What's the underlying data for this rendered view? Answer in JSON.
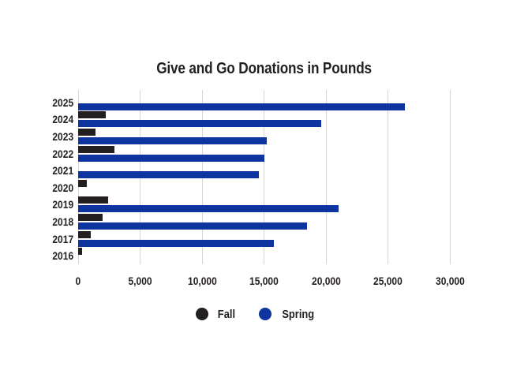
{
  "title": "Give and Go Donations in Pounds",
  "chart_data": {
    "type": "bar",
    "orientation": "horizontal",
    "title": "Give and Go Donations in Pounds",
    "categories": [
      "2025",
      "2024",
      "2023",
      "2022",
      "2021",
      "2020",
      "2019",
      "2018",
      "2017",
      "2016"
    ],
    "series": [
      {
        "name": "Fall",
        "color": "#231F20",
        "values": [
          0,
          2200,
          1400,
          2900,
          0,
          700,
          2400,
          2000,
          1000,
          300
        ]
      },
      {
        "name": "Spring",
        "color": "#0E34A0",
        "values": [
          26400,
          19600,
          15200,
          15000,
          14600,
          0,
          21000,
          18500,
          15800,
          0
        ]
      }
    ],
    "xlabel": "",
    "ylabel": "",
    "xlim": [
      0,
      30000
    ],
    "x_ticks": [
      "0",
      "5,000",
      "10,000",
      "15,000",
      "20,000",
      "25,000",
      "30,000"
    ],
    "x_tick_values": [
      0,
      5000,
      10000,
      15000,
      20000,
      25000,
      30000
    ],
    "grid": "vertical",
    "gridline_color": "#D6D6D6",
    "legend_position": "bottom"
  }
}
